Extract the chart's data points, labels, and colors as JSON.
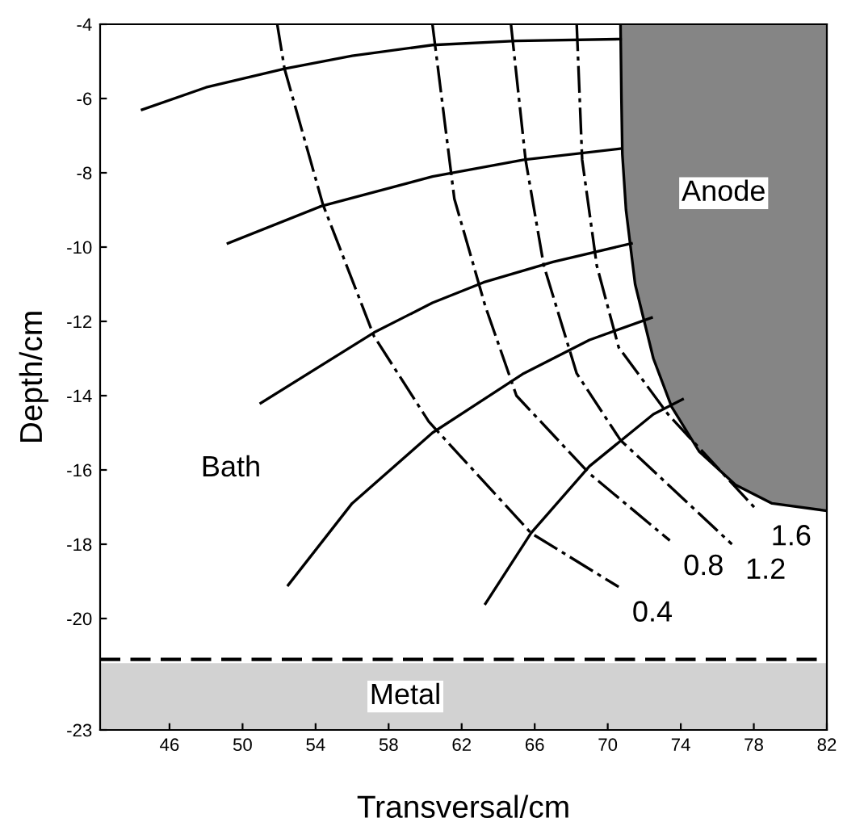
{
  "chart_data": {
    "type": "line",
    "xlabel": "Transversal/cm",
    "ylabel": "Depth/cm",
    "xlim": [
      42.2,
      82
    ],
    "ylim": [
      -23,
      -4
    ],
    "xticks": [
      46,
      50,
      54,
      58,
      62,
      66,
      70,
      74,
      78,
      82
    ],
    "yticks": [
      -4,
      -6,
      -8,
      -10,
      -12,
      -14,
      -16,
      -18,
      -20,
      -23
    ],
    "grid": false,
    "marker": "none",
    "series": [
      {
        "type": "area",
        "name": "Anode",
        "color": "#858585",
        "x": [
          70.7,
          70.75,
          70.8,
          71.0,
          71.5,
          72.5,
          73.5,
          75.0,
          77.0,
          79.0,
          82.0
        ],
        "values": [
          -4,
          -6,
          -7.5,
          -9,
          -11,
          -13,
          -14.3,
          -15.5,
          -16.4,
          -16.9,
          -17.1
        ]
      },
      {
        "color": "#000000",
        "line_style": "solid",
        "x": [
          44.5,
          48.0,
          52.3,
          56.0,
          60.4,
          65.0,
          70.7
        ],
        "values": [
          -6.3,
          -5.7,
          -5.2,
          -4.85,
          -4.56,
          -4.45,
          -4.4
        ]
      },
      {
        "color": "#000000",
        "line_style": "solid",
        "x": [
          49.2,
          54.3,
          60.4,
          65.4,
          70.7
        ],
        "values": [
          -9.9,
          -8.9,
          -8.1,
          -7.65,
          -7.35
        ]
      },
      {
        "color": "#000000",
        "line_style": "solid",
        "x": [
          51.0,
          57.2,
          60.4,
          63.2,
          67.0,
          71.3
        ],
        "values": [
          -14.2,
          -12.3,
          -11.5,
          -10.95,
          -10.4,
          -9.9
        ]
      },
      {
        "color": "#000000",
        "line_style": "solid",
        "x": [
          52.5,
          56.0,
          60.4,
          65.4,
          69.0,
          72.4
        ],
        "values": [
          -19.1,
          -16.9,
          -15.0,
          -13.4,
          -12.5,
          -11.9
        ]
      },
      {
        "color": "#000000",
        "line_style": "solid",
        "x": [
          63.3,
          65.8,
          69.0,
          72.5,
          74.1
        ],
        "values": [
          -19.6,
          -17.7,
          -15.9,
          -14.5,
          -14.1
        ]
      },
      {
        "name": "0.4",
        "color": "#000000",
        "line_style": "dashdot",
        "x": [
          51.9,
          52.3,
          54.4,
          57.2,
          60.2,
          65.8,
          70.6
        ],
        "values": [
          -4,
          -5.2,
          -8.85,
          -12.4,
          -14.7,
          -17.7,
          -19.15
        ]
      },
      {
        "name": "0.8",
        "color": "#000000",
        "line_style": "dashdot",
        "x": [
          60.4,
          61.6,
          63.3,
          65.0,
          69.0,
          73.4
        ],
        "values": [
          -4,
          -8.7,
          -11.6,
          -14.0,
          -16.1,
          -17.9
        ]
      },
      {
        "name": "1.2",
        "color": "#000000",
        "line_style": "dashdot",
        "x": [
          64.7,
          65.5,
          66.5,
          68.3,
          70.7,
          76.8
        ],
        "values": [
          -4,
          -7.65,
          -10.5,
          -13.4,
          -15.2,
          -18.0
        ]
      },
      {
        "name": "1.6",
        "color": "#000000",
        "line_style": "dashdot",
        "x": [
          68.3,
          68.6,
          69.4,
          70.6,
          73.3,
          78.2
        ],
        "values": [
          -4,
          -7.65,
          -10.5,
          -12.7,
          -14.5,
          -17.1
        ]
      }
    ],
    "ref_lines": [
      {
        "axis": "y",
        "value": -21.1,
        "color": "#000000",
        "line_style": "dashed"
      }
    ],
    "bands": [
      {
        "axis": "y",
        "from": -21.2,
        "to": -23,
        "label": "Metal",
        "color": "#d2d2d2"
      }
    ],
    "annotations": [
      "Bath"
    ]
  }
}
